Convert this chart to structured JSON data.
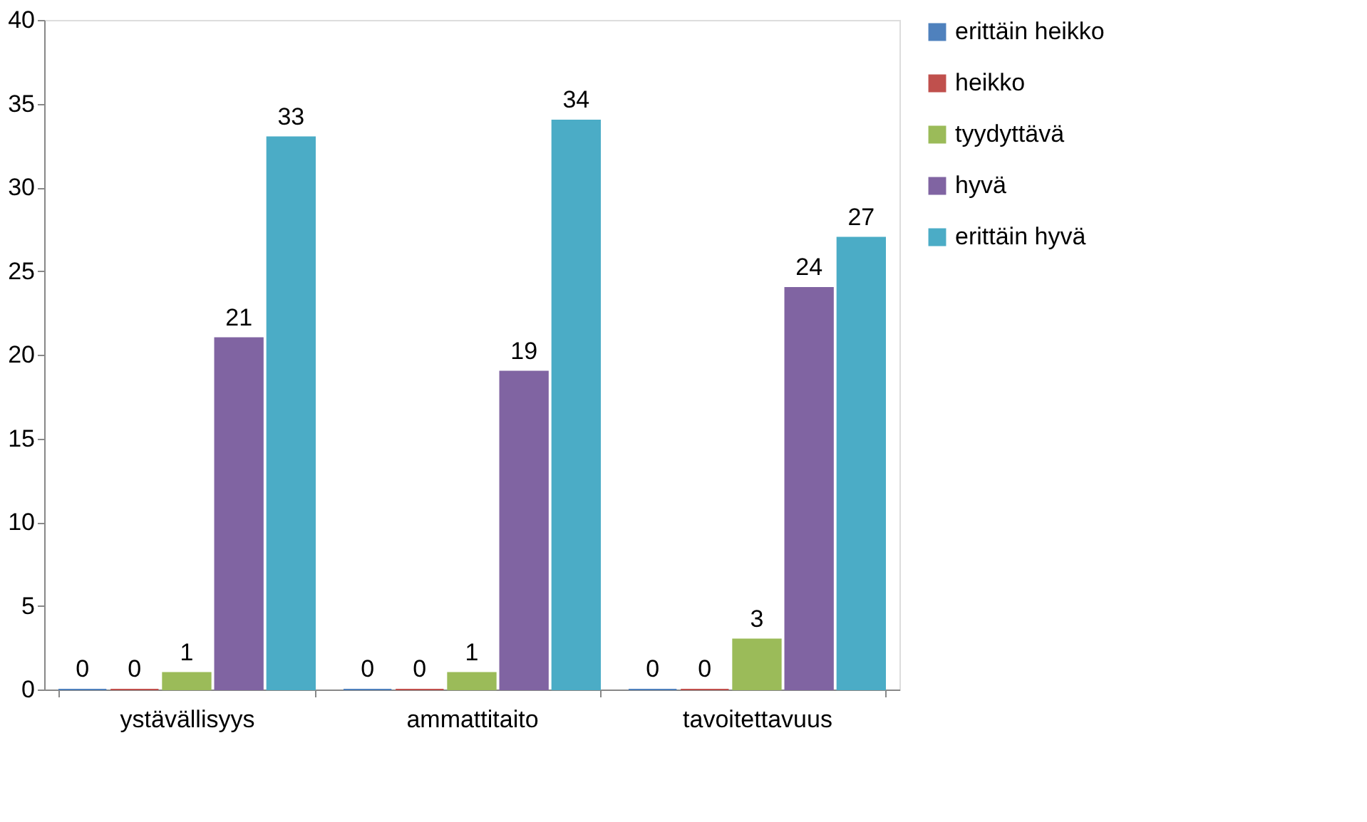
{
  "chart_data": {
    "type": "bar",
    "categories": [
      "ystävällisyys",
      "ammattitaito",
      "tavoitettavuus"
    ],
    "series": [
      {
        "name": "erittäin heikko",
        "color": "#4f81bd",
        "values": [
          0,
          0,
          0
        ]
      },
      {
        "name": "heikko",
        "color": "#c0504d",
        "values": [
          0,
          0,
          0
        ]
      },
      {
        "name": "tyydyttävä",
        "color": "#9bbb59",
        "values": [
          1,
          1,
          3
        ]
      },
      {
        "name": "hyvä",
        "color": "#8064a2",
        "values": [
          21,
          19,
          24
        ]
      },
      {
        "name": "erittäin hyvä",
        "color": "#4bacc6",
        "values": [
          33,
          34,
          27
        ]
      }
    ],
    "ylim": [
      0,
      40
    ],
    "yticks": [
      0,
      5,
      10,
      15,
      20,
      25,
      30,
      35,
      40
    ],
    "grid": false,
    "legend": "right",
    "data_labels": true
  }
}
